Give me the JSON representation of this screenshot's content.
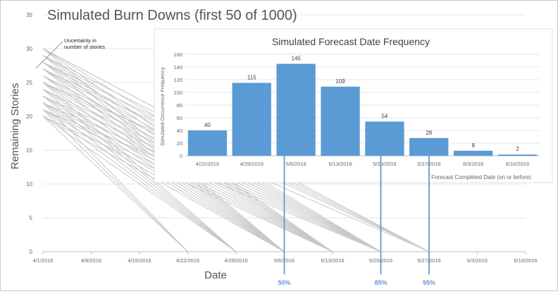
{
  "chart_data": [
    {
      "type": "line",
      "title": "Simulated Burn Downs (first 50 of 1000)",
      "xlabel": "Date",
      "ylabel": "Remaining Stories",
      "ylim": [
        0,
        35
      ],
      "yticks": [
        "0",
        "5",
        "10",
        "15",
        "20",
        "25",
        "30",
        "35"
      ],
      "x_tick_labels": [
        "4/1/2016",
        "4/8/2016",
        "4/15/2016",
        "4/22/2016",
        "4/29/2016",
        "5/6/2016",
        "5/13/2016",
        "5/20/2016",
        "5/27/2016",
        "6/3/2016",
        "6/10/2016"
      ],
      "grid": "horizontal",
      "annotation": "Uncertainty in number of stories",
      "series_color": "#c8c8c8",
      "series": [
        {
          "x": [
            "4/1/2016",
            "4/22/2016"
          ],
          "values": [
            20,
            0
          ]
        },
        {
          "x": [
            "4/1/2016",
            "4/22/2016"
          ],
          "values": [
            21,
            0
          ]
        },
        {
          "x": [
            "4/1/2016",
            "4/22/2016"
          ],
          "values": [
            22,
            0
          ]
        },
        {
          "x": [
            "4/1/2016",
            "4/29/2016"
          ],
          "values": [
            20,
            0
          ]
        },
        {
          "x": [
            "4/1/2016",
            "4/29/2016"
          ],
          "values": [
            23,
            0
          ]
        },
        {
          "x": [
            "4/1/2016",
            "4/29/2016"
          ],
          "values": [
            24,
            0
          ]
        },
        {
          "x": [
            "4/1/2016",
            "4/29/2016"
          ],
          "values": [
            21,
            0
          ]
        },
        {
          "x": [
            "4/1/2016",
            "4/29/2016"
          ],
          "values": [
            25,
            0
          ]
        },
        {
          "x": [
            "4/1/2016",
            "4/29/2016"
          ],
          "values": [
            22,
            0
          ]
        },
        {
          "x": [
            "4/1/2016",
            "5/6/2016"
          ],
          "values": [
            26,
            0
          ]
        },
        {
          "x": [
            "4/1/2016",
            "5/6/2016"
          ],
          "values": [
            20,
            0
          ]
        },
        {
          "x": [
            "4/1/2016",
            "5/6/2016"
          ],
          "values": [
            27,
            0
          ]
        },
        {
          "x": [
            "4/1/2016",
            "5/6/2016"
          ],
          "values": [
            23,
            0
          ]
        },
        {
          "x": [
            "4/1/2016",
            "5/6/2016"
          ],
          "values": [
            28,
            0
          ]
        },
        {
          "x": [
            "4/1/2016",
            "5/6/2016"
          ],
          "values": [
            24,
            0
          ]
        },
        {
          "x": [
            "4/1/2016",
            "5/6/2016"
          ],
          "values": [
            21,
            0
          ]
        },
        {
          "x": [
            "4/1/2016",
            "5/6/2016"
          ],
          "values": [
            29,
            0
          ]
        },
        {
          "x": [
            "4/1/2016",
            "5/6/2016"
          ],
          "values": [
            25,
            0
          ]
        },
        {
          "x": [
            "4/1/2016",
            "5/6/2016"
          ],
          "values": [
            22,
            0
          ]
        },
        {
          "x": [
            "4/1/2016",
            "5/6/2016"
          ],
          "values": [
            30,
            0
          ]
        },
        {
          "x": [
            "4/1/2016",
            "5/13/2016"
          ],
          "values": [
            26,
            0
          ]
        },
        {
          "x": [
            "4/1/2016",
            "5/13/2016"
          ],
          "values": [
            20,
            0
          ]
        },
        {
          "x": [
            "4/1/2016",
            "5/13/2016"
          ],
          "values": [
            27,
            0
          ]
        },
        {
          "x": [
            "4/1/2016",
            "5/13/2016"
          ],
          "values": [
            23,
            0
          ]
        },
        {
          "x": [
            "4/1/2016",
            "5/13/2016"
          ],
          "values": [
            28,
            0
          ]
        },
        {
          "x": [
            "4/1/2016",
            "5/13/2016"
          ],
          "values": [
            24,
            0
          ]
        },
        {
          "x": [
            "4/1/2016",
            "5/13/2016"
          ],
          "values": [
            29,
            0
          ]
        },
        {
          "x": [
            "4/1/2016",
            "5/13/2016"
          ],
          "values": [
            21,
            0
          ]
        },
        {
          "x": [
            "4/1/2016",
            "5/13/2016"
          ],
          "values": [
            30,
            0
          ]
        },
        {
          "x": [
            "4/1/2016",
            "5/13/2016"
          ],
          "values": [
            25,
            0
          ]
        },
        {
          "x": [
            "4/1/2016",
            "5/13/2016"
          ],
          "values": [
            22,
            0
          ]
        },
        {
          "x": [
            "4/1/2016",
            "5/13/2016"
          ],
          "values": [
            27,
            0
          ]
        },
        {
          "x": [
            "4/1/2016",
            "5/20/2016"
          ],
          "values": [
            26,
            0
          ]
        },
        {
          "x": [
            "4/1/2016",
            "5/20/2016"
          ],
          "values": [
            28,
            0
          ]
        },
        {
          "x": [
            "4/1/2016",
            "5/20/2016"
          ],
          "values": [
            23,
            0
          ]
        },
        {
          "x": [
            "4/1/2016",
            "5/20/2016"
          ],
          "values": [
            30,
            0
          ]
        },
        {
          "x": [
            "4/1/2016",
            "5/20/2016"
          ],
          "values": [
            24,
            0
          ]
        },
        {
          "x": [
            "4/1/2016",
            "5/20/2016"
          ],
          "values": [
            29,
            0
          ]
        },
        {
          "x": [
            "4/1/2016",
            "5/20/2016"
          ],
          "values": [
            25,
            0
          ]
        },
        {
          "x": [
            "4/1/2016",
            "5/20/2016"
          ],
          "values": [
            27,
            0
          ]
        },
        {
          "x": [
            "4/1/2016",
            "5/20/2016"
          ],
          "values": [
            22,
            0
          ]
        },
        {
          "x": [
            "4/1/2016",
            "5/20/2016"
          ],
          "values": [
            28,
            0
          ]
        },
        {
          "x": [
            "4/1/2016",
            "5/20/2016"
          ],
          "values": [
            21,
            0
          ]
        },
        {
          "x": [
            "4/1/2016",
            "5/20/2016"
          ],
          "values": [
            26,
            0
          ]
        },
        {
          "x": [
            "4/1/2016",
            "5/27/2016"
          ],
          "values": [
            29,
            0
          ]
        },
        {
          "x": [
            "4/1/2016",
            "5/27/2016"
          ],
          "values": [
            30,
            0
          ]
        },
        {
          "x": [
            "4/1/2016",
            "5/27/2016"
          ],
          "values": [
            27,
            0
          ]
        },
        {
          "x": [
            "4/1/2016",
            "5/27/2016"
          ],
          "values": [
            28,
            0
          ]
        },
        {
          "x": [
            "4/1/2016",
            "5/27/2016"
          ],
          "values": [
            25,
            0
          ]
        },
        {
          "x": [
            "4/1/2016",
            "5/27/2016"
          ],
          "values": [
            30,
            0
          ]
        }
      ]
    },
    {
      "type": "bar",
      "title": "Simulated Forecast Date Frequency",
      "xlabel": "Forecast Completed Date (on or before)",
      "ylabel": "Simulated Occurrence Frequency",
      "ylim": [
        0,
        160
      ],
      "yticks": [
        "0",
        "20",
        "40",
        "60",
        "80",
        "100",
        "120",
        "140",
        "160"
      ],
      "categories": [
        "4/22/2016",
        "4/29/2016",
        "5/6/2016",
        "5/13/2016",
        "5/20/2016",
        "5/27/2016",
        "6/3/2016",
        "6/10/2016"
      ],
      "values": [
        40,
        115,
        145,
        109,
        54,
        28,
        8,
        2
      ],
      "data_labels": [
        "40",
        "115",
        "145",
        "109",
        "54",
        "28",
        "8",
        "2"
      ],
      "bar_color": "#5b9bd5",
      "grid": "horizontal"
    }
  ],
  "markers": [
    {
      "label": "50%",
      "x": "5/6/2016"
    },
    {
      "label": "85%",
      "x": "5/20/2016"
    },
    {
      "label": "95%",
      "x": "5/27/2016"
    }
  ],
  "marker_color": "#5b9bd5"
}
